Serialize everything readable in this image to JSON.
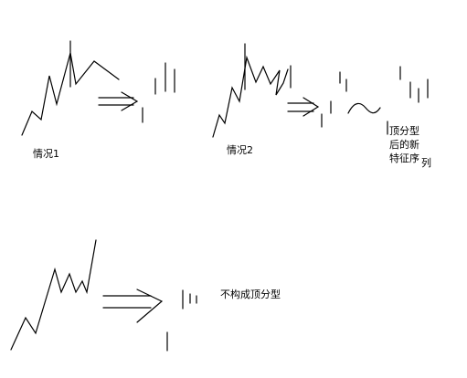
{
  "labels": {
    "case1": "情况1",
    "case2": "情况2",
    "new_seq_line1": "顶分型",
    "new_seq_line2": "后的新",
    "new_seq_line3a": "特征序",
    "new_seq_line3b": "列",
    "case3": "不构成顶分型"
  },
  "colors": {
    "stroke": "#000000",
    "background": "#ffffff"
  }
}
